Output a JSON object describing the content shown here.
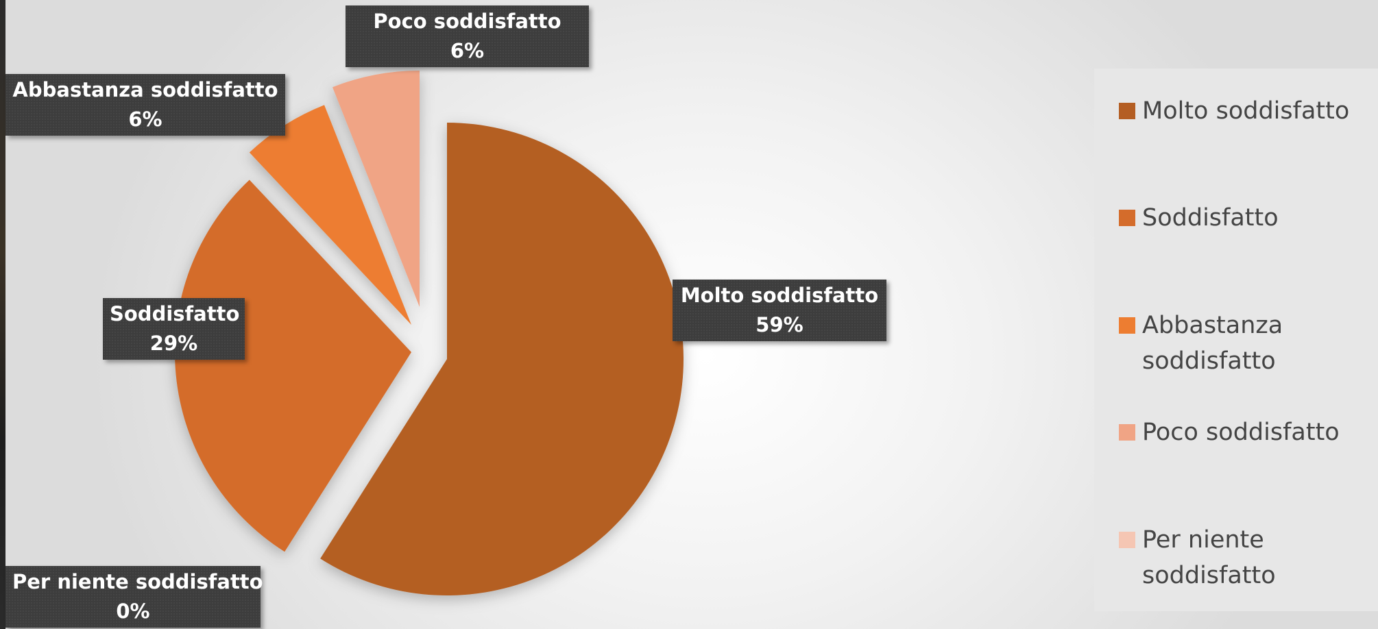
{
  "chart_data": {
    "type": "pie",
    "exploded": true,
    "start_angle_deg": 0,
    "direction": "clockwise",
    "legend_position": "right",
    "slices": [
      {
        "label": "Molto soddisfatto",
        "value": 59,
        "value_label": "59%",
        "color": "#b45e23"
      },
      {
        "label": "Soddisfatto",
        "value": 29,
        "value_label": "29%",
        "color": "#d46c2b"
      },
      {
        "label": "Abbastanza soddisfatto",
        "value": 6,
        "value_label": "6%",
        "color": "#ed7d31"
      },
      {
        "label": "Poco soddisfatto",
        "value": 6,
        "value_label": "6%",
        "color": "#f0a485"
      },
      {
        "label": "Per niente soddisfatto",
        "value": 0,
        "value_label": "0%",
        "color": "#f5c6b3"
      }
    ]
  }
}
